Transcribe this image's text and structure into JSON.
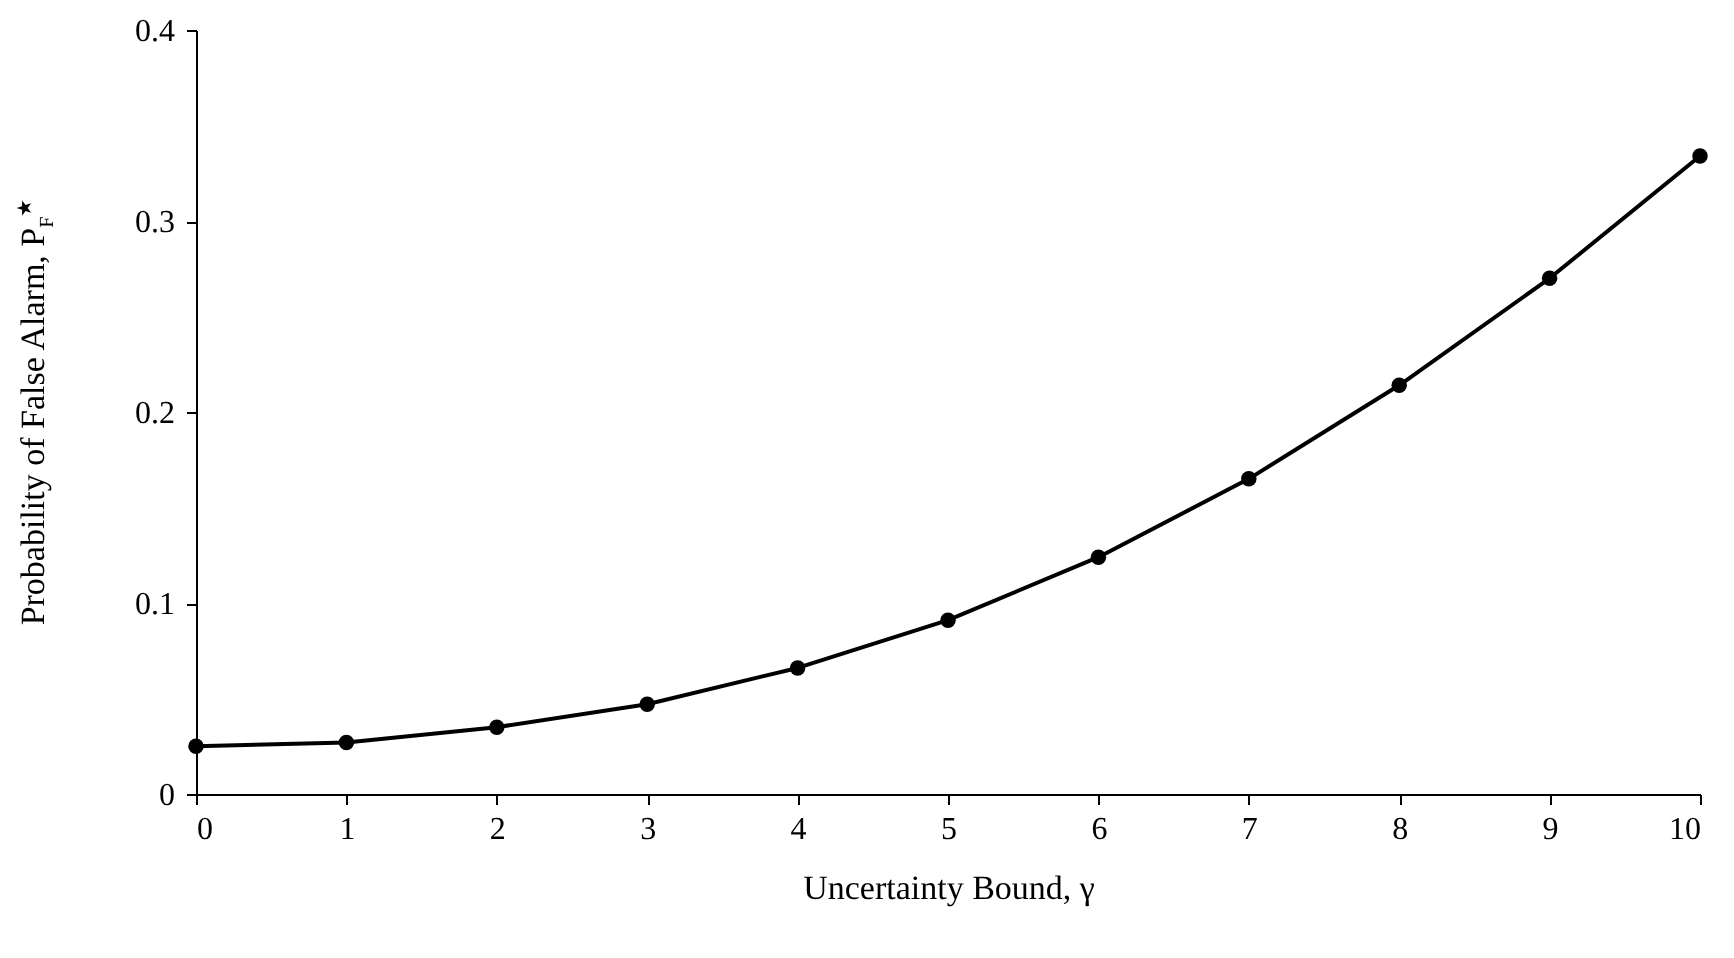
{
  "chart_data": {
    "type": "line",
    "xlabel": "Uncertainty Bound,  γ",
    "ylabel": "Probability of False Alarm,  P$_{F}$$^{★}$",
    "x": [
      0,
      1,
      2,
      3,
      4,
      5,
      6,
      7,
      8,
      9,
      10
    ],
    "series": [
      {
        "color": "#000000",
        "values": [
          0.025,
          0.027,
          0.035,
          0.047,
          0.066,
          0.091,
          0.124,
          0.165,
          0.214,
          0.27,
          0.334
        ]
      }
    ],
    "xlim": [
      0,
      10
    ],
    "xticks": [
      0,
      1,
      2,
      3,
      4,
      5,
      6,
      7,
      8,
      9,
      10
    ],
    "ylim": [
      0,
      0.4
    ],
    "yticks": [
      0,
      0.1,
      0.2,
      0.3,
      0.4
    ],
    "grid": false,
    "marker": "circle",
    "line_style": "solid"
  }
}
